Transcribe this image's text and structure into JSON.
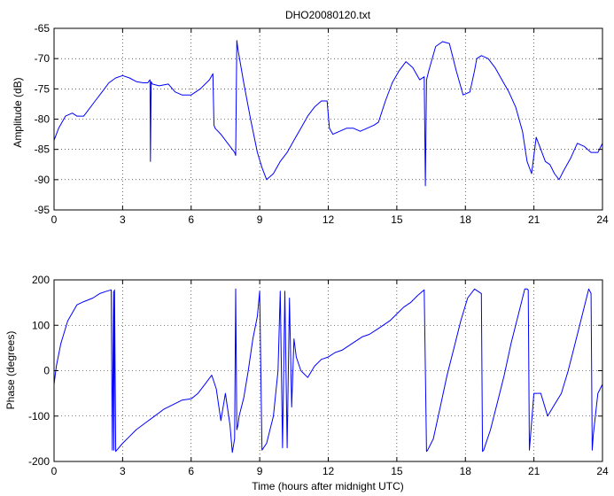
{
  "chart_data": [
    {
      "type": "line",
      "title": "DHO20080120.txt",
      "xlabel": "",
      "ylabel": "Amplitude (dB)",
      "xlim": [
        0,
        24
      ],
      "ylim": [
        -95,
        -65
      ],
      "xticks": [
        0,
        3,
        6,
        9,
        12,
        15,
        18,
        21,
        24
      ],
      "yticks": [
        -95,
        -90,
        -85,
        -80,
        -75,
        -70,
        -65
      ],
      "grid": "dotted",
      "color": "#0000ff",
      "x": [
        0,
        0.2,
        0.5,
        0.8,
        1.0,
        1.3,
        1.5,
        1.8,
        2.1,
        2.4,
        2.7,
        3.0,
        3.3,
        3.6,
        3.9,
        4.1,
        4.2,
        4.22,
        4.25,
        4.3,
        4.6,
        5.0,
        5.3,
        5.6,
        6.0,
        6.4,
        6.8,
        6.95,
        7.0,
        7.05,
        7.3,
        7.6,
        7.9,
        7.95,
        8.0,
        8.05,
        8.3,
        8.6,
        8.9,
        9.1,
        9.3,
        9.6,
        9.9,
        10.2,
        10.5,
        10.8,
        11.1,
        11.4,
        11.7,
        11.95,
        12.05,
        12.2,
        12.5,
        12.8,
        13.1,
        13.4,
        13.7,
        14.0,
        14.2,
        14.5,
        14.8,
        15.1,
        15.4,
        15.7,
        16.0,
        16.2,
        16.25,
        16.3,
        16.4,
        16.7,
        17.0,
        17.3,
        17.6,
        17.9,
        18.2,
        18.4,
        18.5,
        18.7,
        19.0,
        19.3,
        19.6,
        19.9,
        20.2,
        20.5,
        20.7,
        20.9,
        21.1,
        21.3,
        21.5,
        21.7,
        21.9,
        22.1,
        22.3,
        22.6,
        22.9,
        23.2,
        23.5,
        23.8,
        24.0
      ],
      "y": [
        -83.5,
        -81.5,
        -79.5,
        -79,
        -79.5,
        -79.5,
        -78.5,
        -77,
        -75.5,
        -74,
        -73.2,
        -72.8,
        -73.2,
        -73.8,
        -74,
        -74,
        -73.5,
        -87,
        -73.8,
        -74.2,
        -74.5,
        -74.2,
        -75.5,
        -76,
        -76,
        -75,
        -73.5,
        -72.5,
        -81,
        -81.5,
        -82.5,
        -84,
        -85.5,
        -86,
        -67,
        -68.5,
        -74,
        -80,
        -85.5,
        -88,
        -90,
        -89,
        -87,
        -85.5,
        -83.5,
        -81.5,
        -79.5,
        -78,
        -77,
        -77,
        -81.5,
        -82.5,
        -82,
        -81.5,
        -81.5,
        -82,
        -81.5,
        -81,
        -80.5,
        -77,
        -74,
        -72,
        -70.5,
        -71.5,
        -73.5,
        -73,
        -91,
        -73.5,
        -72,
        -68,
        -67.2,
        -67.5,
        -72,
        -76,
        -75.5,
        -72,
        -70,
        -69.5,
        -70,
        -71.5,
        -73.5,
        -75.5,
        -78,
        -82,
        -87,
        -89,
        -83,
        -85,
        -87,
        -87.5,
        -89,
        -90,
        -88.5,
        -86.5,
        -84,
        -84.5,
        -85.5,
        -85.5,
        -84
      ]
    },
    {
      "type": "line",
      "title": "",
      "xlabel": "Time (hours after midnight UTC)",
      "ylabel": "Phase (degrees)",
      "xlim": [
        0,
        24
      ],
      "ylim": [
        -200,
        200
      ],
      "xticks": [
        0,
        3,
        6,
        9,
        12,
        15,
        18,
        21,
        24
      ],
      "yticks": [
        -200,
        -100,
        0,
        100,
        200
      ],
      "grid": "dotted",
      "color": "#0000ff",
      "x": [
        0,
        0.1,
        0.3,
        0.6,
        1.0,
        1.3,
        1.7,
        2.0,
        2.3,
        2.5,
        2.55,
        2.6,
        2.62,
        2.65,
        2.7,
        3.0,
        3.3,
        3.6,
        4.0,
        4.4,
        4.8,
        5.2,
        5.6,
        6.0,
        6.3,
        6.6,
        6.9,
        7.1,
        7.3,
        7.5,
        7.7,
        7.8,
        7.9,
        7.95,
        8.0,
        8.05,
        8.1,
        8.3,
        8.5,
        8.7,
        8.9,
        9.0,
        9.05,
        9.1,
        9.3,
        9.6,
        9.8,
        9.9,
        10.0,
        10.1,
        10.2,
        10.3,
        10.4,
        10.5,
        10.6,
        10.8,
        11.1,
        11.4,
        11.7,
        12.0,
        12.3,
        12.6,
        12.9,
        13.2,
        13.5,
        13.8,
        14.1,
        14.4,
        14.7,
        15.0,
        15.3,
        15.6,
        15.9,
        16.2,
        16.3,
        16.35,
        16.6,
        16.9,
        17.2,
        17.5,
        17.8,
        18.1,
        18.4,
        18.7,
        18.75,
        18.8,
        19.1,
        19.4,
        19.7,
        20.0,
        20.3,
        20.6,
        20.7,
        20.75,
        20.8,
        21.0,
        21.3,
        21.6,
        21.9,
        22.2,
        22.5,
        22.8,
        23.1,
        23.4,
        23.5,
        23.55,
        23.6,
        23.8,
        24.0
      ],
      "y": [
        -30,
        10,
        60,
        110,
        145,
        152,
        160,
        170,
        175,
        178,
        -175,
        175,
        -175,
        178,
        -178,
        -160,
        -145,
        -130,
        -115,
        -100,
        -85,
        -75,
        -65,
        -62,
        -50,
        -30,
        -10,
        -40,
        -110,
        -50,
        -120,
        -180,
        -150,
        180,
        -130,
        -120,
        -100,
        -60,
        0,
        70,
        120,
        175,
        0,
        -175,
        -160,
        -100,
        0,
        175,
        -170,
        175,
        -170,
        160,
        -80,
        70,
        30,
        0,
        -15,
        10,
        25,
        30,
        40,
        45,
        55,
        65,
        75,
        80,
        90,
        100,
        110,
        125,
        140,
        150,
        165,
        178,
        -178,
        -175,
        -150,
        -80,
        -10,
        50,
        110,
        160,
        180,
        170,
        -178,
        -175,
        -130,
        -70,
        -10,
        60,
        120,
        180,
        180,
        178,
        -175,
        -50,
        -50,
        -100,
        -75,
        -50,
        0,
        60,
        120,
        180,
        170,
        -175,
        -140,
        -50,
        -30
      ]
    }
  ]
}
